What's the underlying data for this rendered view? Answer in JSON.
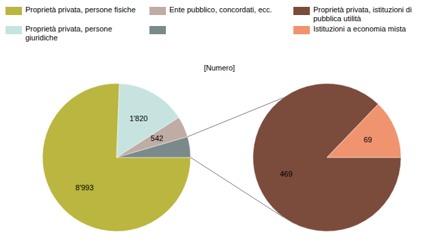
{
  "chart_data": {
    "type": "pie",
    "title": "[Numero]",
    "data_labels": true,
    "legend": "top",
    "series": [
      {
        "categories": [
          "Proprietà privata, persone fisiche",
          "Proprietà privata, persone giuridiche",
          "Ente pubblico, concordati, ecc.",
          null
        ],
        "values": [
          8993,
          1820,
          542,
          538
        ],
        "value_labels": [
          "8'993",
          "1'820",
          "542",
          null
        ],
        "colors": [
          "#bab63f",
          "#c6e3e0",
          "#bfaca4",
          "#7a8a8a"
        ]
      },
      {
        "categories": [
          "Proprietà privata, istituzioni di pubblica utilità",
          "Istituzioni a economia mista"
        ],
        "values": [
          469,
          69
        ],
        "colors": [
          "#7b4b3c",
          "#f0936f"
        ]
      }
    ]
  }
}
